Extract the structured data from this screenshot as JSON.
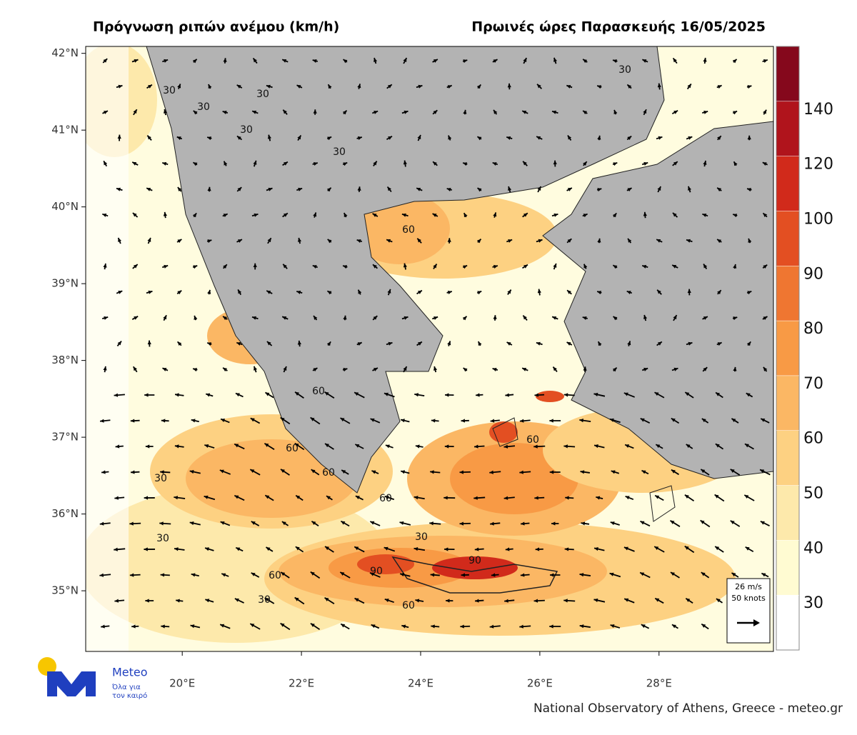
{
  "header": {
    "title_left": "Πρόγνωση ριπών ανέμου (km/h)",
    "title_right": "Πρωινές ώρες Παρασκευής 16/05/2025"
  },
  "map": {
    "xlim": [
      18.38,
      29.92
    ],
    "ylim": [
      34.21,
      42.09
    ],
    "xticks": [
      {
        "value": 20,
        "label": "20°E"
      },
      {
        "value": 22,
        "label": "22°E"
      },
      {
        "value": 24,
        "label": "24°E"
      },
      {
        "value": 26,
        "label": "26°E"
      },
      {
        "value": 28,
        "label": "28°E"
      }
    ],
    "yticks": [
      {
        "value": 35,
        "label": "35°N"
      },
      {
        "value": 36,
        "label": "36°N"
      },
      {
        "value": 37,
        "label": "37°N"
      },
      {
        "value": 38,
        "label": "38°N"
      },
      {
        "value": 39,
        "label": "39°N"
      },
      {
        "value": 40,
        "label": "40°N"
      },
      {
        "value": 41,
        "label": "41°N"
      },
      {
        "value": 42,
        "label": "42°N"
      }
    ],
    "contour_labels": [
      "30",
      "30",
      "30",
      "30",
      "30",
      "30",
      "30",
      "30",
      "30",
      "30",
      "60",
      "60",
      "60",
      "60",
      "60",
      "60",
      "60",
      "60",
      "90",
      "90"
    ],
    "reference_vector": {
      "speed": "26 m/s",
      "knots": "50 knots"
    }
  },
  "colorbar": {
    "ticks": [
      30,
      40,
      50,
      60,
      70,
      80,
      90,
      100,
      120,
      140
    ],
    "colors": [
      "#ffffff",
      "#fffbd2",
      "#fde9ab",
      "#fdd182",
      "#fbb764",
      "#f89a45",
      "#ef7631",
      "#e34f22",
      "#d12a1b",
      "#b0141c",
      "#85081c"
    ]
  },
  "logo": {
    "name": "Meteo",
    "tagline_1": "Όλα για",
    "tagline_2": "τον καιρό"
  },
  "footer": {
    "credit": "National Observatory of Athens, Greece - meteo.gr"
  }
}
